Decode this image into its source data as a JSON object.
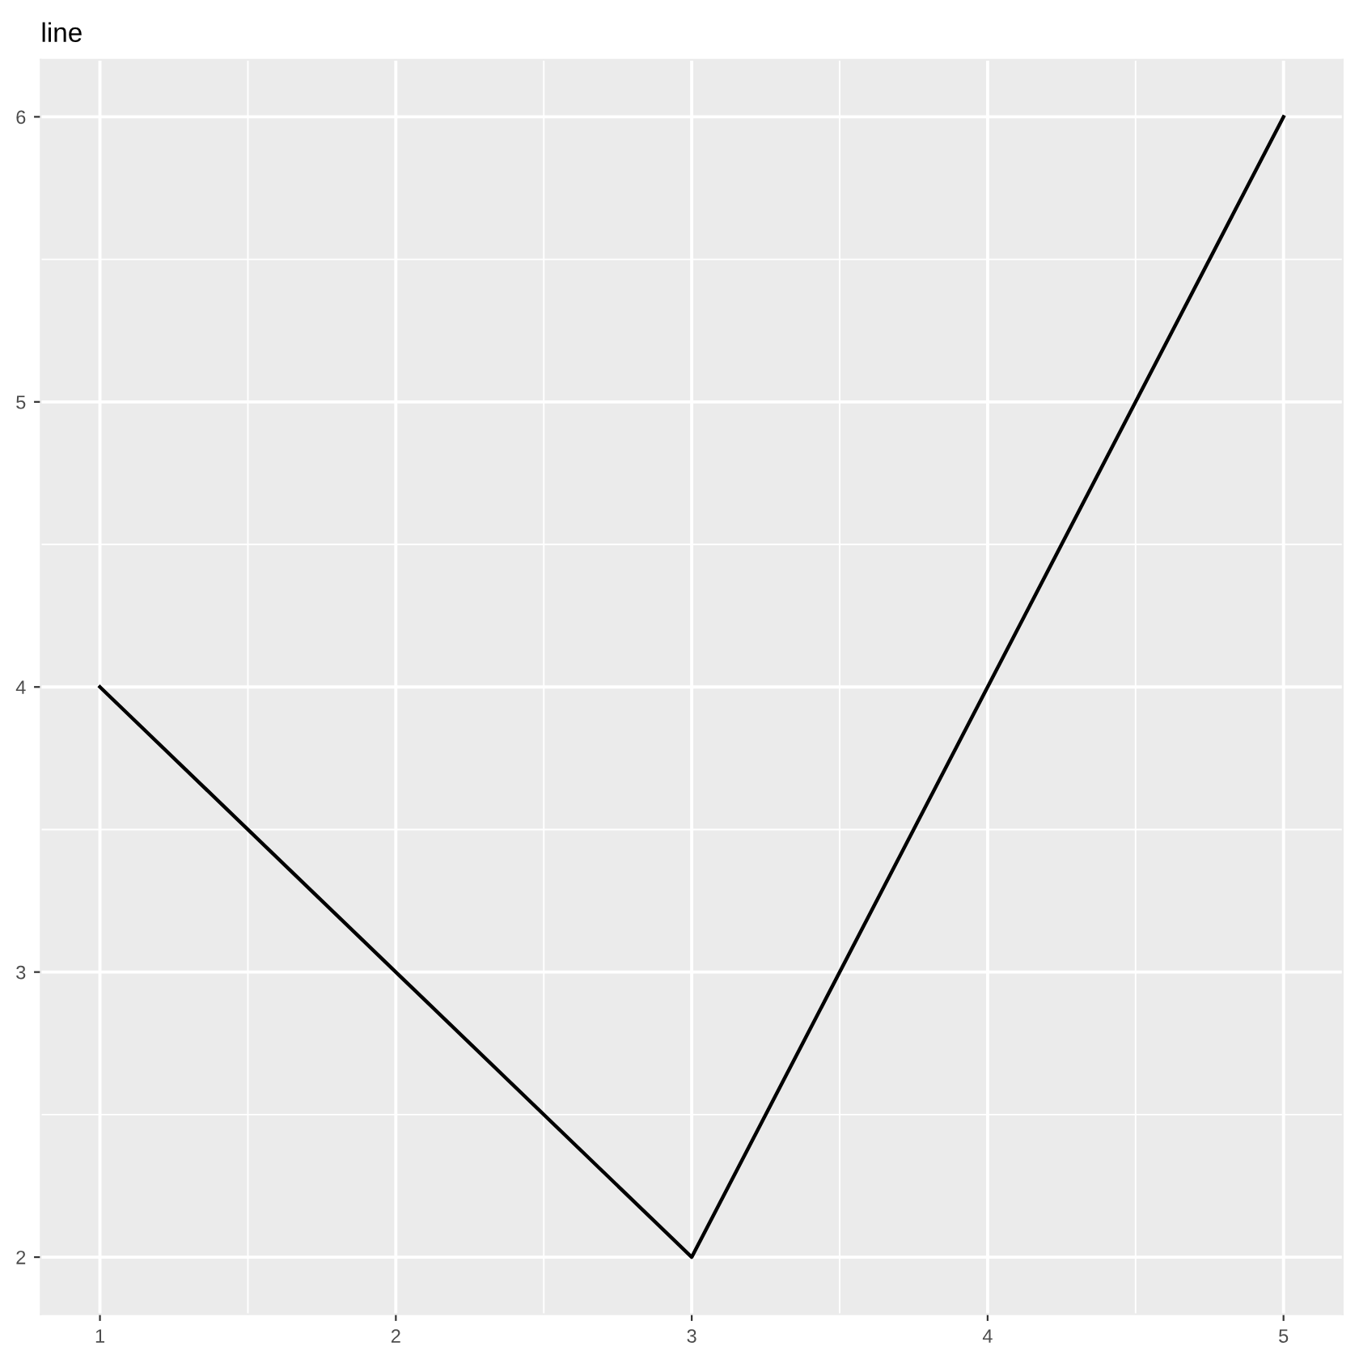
{
  "chart_data": {
    "type": "line",
    "title": "line",
    "x": [
      1,
      3,
      5
    ],
    "series": [
      {
        "color": "#000000",
        "values": [
          4,
          2,
          6
        ]
      }
    ],
    "xlim": [
      0.8,
      5.2
    ],
    "xticks": [
      1,
      2,
      3,
      4,
      5
    ],
    "ylim": [
      1.8,
      6.2
    ],
    "yticks": [
      2,
      3,
      4,
      5,
      6
    ],
    "grid": true,
    "line_style": "solid"
  }
}
